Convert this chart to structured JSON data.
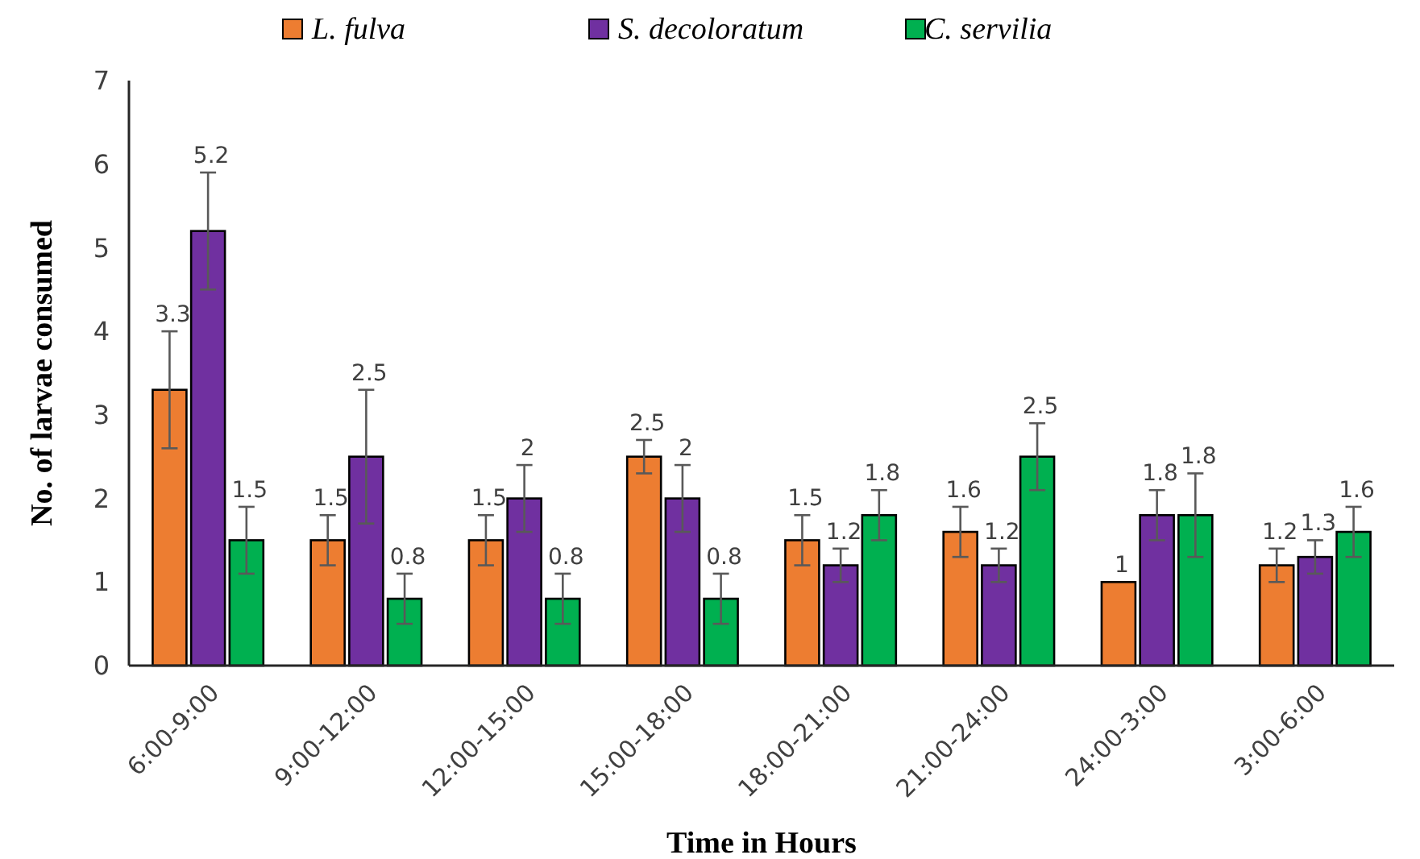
{
  "chart_data": {
    "type": "bar",
    "xlabel": "Time in Hours",
    "ylabel": "No. of larvae consumed",
    "categories": [
      "6:00-9:00",
      "9:00-12:00",
      "12:00-15:00",
      "15:00-18:00",
      "18:00-21:00",
      "21:00-24:00",
      "24:00-3:00",
      "3:00-6:00"
    ],
    "series": [
      {
        "name": "L. fulva",
        "color": "#ed7d31",
        "values": [
          3.3,
          1.5,
          1.5,
          2.5,
          1.5,
          1.6,
          1,
          1.2
        ],
        "errors": [
          0.7,
          0.3,
          0.3,
          0.2,
          0.3,
          0.3,
          null,
          0.2
        ]
      },
      {
        "name": "S. decoloratum",
        "color": "#7030a0",
        "values": [
          5.2,
          2.5,
          2,
          2,
          1.2,
          1.2,
          1.8,
          1.3
        ],
        "errors": [
          0.7,
          0.8,
          0.4,
          0.4,
          0.2,
          0.2,
          0.3,
          0.2
        ]
      },
      {
        "name": "C. servilia",
        "color": "#00b050",
        "values": [
          1.5,
          0.8,
          0.8,
          0.8,
          1.8,
          2.5,
          1.8,
          1.6
        ],
        "errors": [
          0.4,
          0.3,
          0.3,
          0.3,
          0.3,
          0.4,
          0.5,
          0.3
        ]
      }
    ],
    "ylim": [
      0,
      7
    ],
    "yticks": [
      0,
      1,
      2,
      3,
      4,
      5,
      6,
      7
    ],
    "grid": false,
    "legend": "top",
    "data_labels": true
  }
}
